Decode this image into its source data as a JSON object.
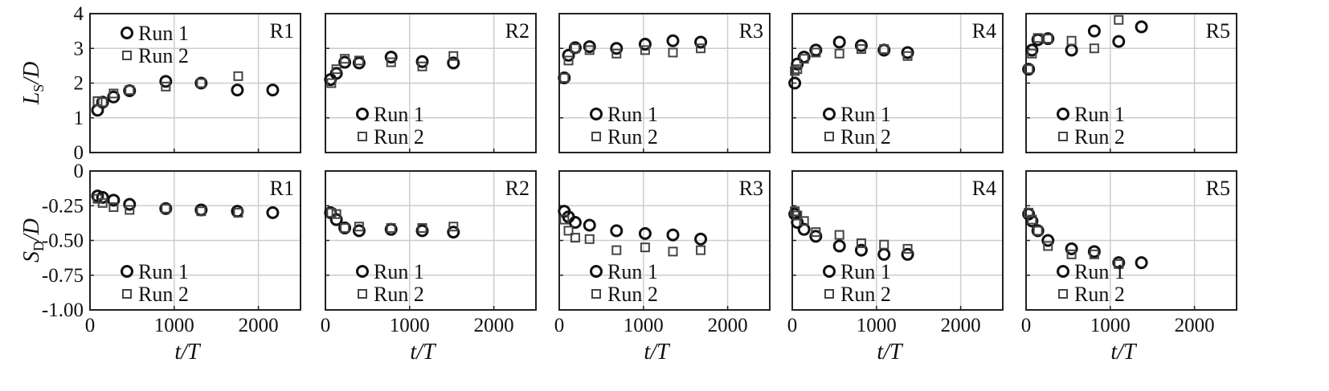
{
  "chart_data": {
    "type": "scatter",
    "layout": "2 rows x 5 columns of panels, shared axes",
    "xlabel": "t/T",
    "xlim": [
      0,
      2500
    ],
    "xticks": [
      0,
      1000,
      2000
    ],
    "grid": true,
    "rows": [
      {
        "ylabel_main": "L",
        "ylabel_sub": "S",
        "ylabel_tail": "/D",
        "ylim": [
          0,
          4
        ],
        "yticks": [
          0,
          1,
          2,
          3,
          4
        ],
        "ytick_labels": [
          "0",
          "1",
          "2",
          "3",
          "4"
        ],
        "legend_position": [
          "top-left",
          "bottom-left",
          "bottom-left",
          "bottom-left",
          "bottom-left"
        ]
      },
      {
        "ylabel_main": "S",
        "ylabel_sub": "D",
        "ylabel_tail": "/D",
        "ylim": [
          -1,
          0
        ],
        "yticks": [
          0,
          -0.25,
          -0.5,
          -0.75,
          -1.0
        ],
        "ytick_labels": [
          "0",
          "-0.25",
          "-0.50",
          "-0.75",
          "-1.00"
        ],
        "legend_position": [
          "bottom-left",
          "bottom-left",
          "bottom-left",
          "bottom-left",
          "bottom-left"
        ]
      }
    ],
    "legend": [
      {
        "name": "Run 1",
        "marker": "circle"
      },
      {
        "name": "Run 2",
        "marker": "square"
      }
    ],
    "panels": [
      {
        "title": "R1",
        "top": [
          {
            "name": "Run 1",
            "x": [
              90,
              150,
              280,
              470,
              900,
              1320,
              1750,
              2170
            ],
            "y": [
              1.22,
              1.45,
              1.6,
              1.78,
              2.05,
              2.0,
              1.8,
              1.8
            ]
          },
          {
            "name": "Run 2",
            "x": [
              90,
              150,
              280,
              470,
              900,
              1320,
              1760
            ],
            "y": [
              1.48,
              1.45,
              1.7,
              1.8,
              1.9,
              2.0,
              2.2
            ]
          }
        ],
        "bottom": [
          {
            "name": "Run 1",
            "x": [
              90,
              150,
              280,
              470,
              900,
              1320,
              1750,
              2170
            ],
            "y": [
              -0.18,
              -0.19,
              -0.21,
              -0.24,
              -0.27,
              -0.28,
              -0.29,
              -0.3
            ]
          },
          {
            "name": "Run 2",
            "x": [
              90,
              150,
              280,
              470,
              900,
              1320,
              1760
            ],
            "y": [
              -0.2,
              -0.23,
              -0.26,
              -0.28,
              -0.27,
              -0.29,
              -0.3
            ]
          }
        ]
      },
      {
        "title": "R2",
        "top": [
          {
            "name": "Run 1",
            "x": [
              60,
              130,
              230,
              400,
              780,
              1150,
              1520
            ],
            "y": [
              2.1,
              2.28,
              2.6,
              2.58,
              2.75,
              2.62,
              2.58
            ]
          },
          {
            "name": "Run 2",
            "x": [
              70,
              130,
              230,
              400,
              780,
              1150,
              1520
            ],
            "y": [
              2.0,
              2.4,
              2.7,
              2.65,
              2.6,
              2.48,
              2.78
            ]
          }
        ],
        "bottom": [
          {
            "name": "Run 1",
            "x": [
              60,
              130,
              230,
              400,
              780,
              1150,
              1520
            ],
            "y": [
              -0.3,
              -0.35,
              -0.41,
              -0.43,
              -0.42,
              -0.43,
              -0.44
            ]
          },
          {
            "name": "Run 2",
            "x": [
              70,
              130,
              230,
              400,
              780,
              1150,
              1520
            ],
            "y": [
              -0.3,
              -0.31,
              -0.41,
              -0.4,
              -0.41,
              -0.41,
              -0.4
            ]
          }
        ]
      },
      {
        "title": "R3",
        "top": [
          {
            "name": "Run 1",
            "x": [
              60,
              110,
              190,
              360,
              680,
              1020,
              1350,
              1680
            ],
            "y": [
              2.15,
              2.8,
              3.02,
              3.05,
              3.0,
              3.12,
              3.22,
              3.18
            ]
          },
          {
            "name": "Run 2",
            "x": [
              60,
              110,
              190,
              360,
              680,
              1020,
              1350,
              1680
            ],
            "y": [
              2.15,
              2.65,
              3.0,
              2.95,
              2.85,
              2.95,
              2.88,
              3.0
            ]
          }
        ],
        "bottom": [
          {
            "name": "Run 1",
            "x": [
              60,
              110,
              190,
              360,
              680,
              1020,
              1350,
              1680
            ],
            "y": [
              -0.29,
              -0.33,
              -0.37,
              -0.39,
              -0.43,
              -0.45,
              -0.46,
              -0.49
            ]
          },
          {
            "name": "Run 2",
            "x": [
              60,
              110,
              190,
              360,
              680,
              1020,
              1350,
              1680
            ],
            "y": [
              -0.35,
              -0.43,
              -0.48,
              -0.49,
              -0.57,
              -0.55,
              -0.58,
              -0.57
            ]
          }
        ]
      },
      {
        "title": "R4",
        "top": [
          {
            "name": "Run 1",
            "x": [
              30,
              60,
              140,
              280,
              560,
              820,
              1090,
              1370
            ],
            "y": [
              2.0,
              2.55,
              2.75,
              2.95,
              3.18,
              3.08,
              2.95,
              2.88
            ]
          },
          {
            "name": "Run 2",
            "x": [
              30,
              60,
              140,
              280,
              560,
              820,
              1090,
              1370
            ],
            "y": [
              2.35,
              2.4,
              2.7,
              2.88,
              2.85,
              2.98,
              2.98,
              2.78
            ]
          }
        ],
        "bottom": [
          {
            "name": "Run 1",
            "x": [
              30,
              60,
              140,
              280,
              560,
              820,
              1090,
              1370
            ],
            "y": [
              -0.31,
              -0.37,
              -0.42,
              -0.47,
              -0.54,
              -0.57,
              -0.6,
              -0.6
            ]
          },
          {
            "name": "Run 2",
            "x": [
              30,
              60,
              140,
              280,
              560,
              820,
              1090,
              1370
            ],
            "y": [
              -0.29,
              -0.32,
              -0.36,
              -0.44,
              -0.46,
              -0.52,
              -0.53,
              -0.56
            ]
          }
        ]
      },
      {
        "title": "R5",
        "top": [
          {
            "name": "Run 1",
            "x": [
              30,
              70,
              140,
              260,
              540,
              810,
              1100,
              1370
            ],
            "y": [
              2.4,
              2.95,
              3.25,
              3.28,
              2.95,
              3.5,
              3.2,
              3.62
            ]
          },
          {
            "name": "Run 2",
            "x": [
              30,
              70,
              140,
              260,
              540,
              810,
              1100
            ],
            "y": [
              2.4,
              2.85,
              3.3,
              3.28,
              3.22,
              3.0,
              3.82
            ]
          }
        ],
        "bottom": [
          {
            "name": "Run 1",
            "x": [
              30,
              70,
              140,
              260,
              540,
              810,
              1100,
              1370
            ],
            "y": [
              -0.31,
              -0.36,
              -0.43,
              -0.5,
              -0.56,
              -0.58,
              -0.66,
              -0.66
            ]
          },
          {
            "name": "Run 2",
            "x": [
              30,
              70,
              140,
              260,
              540,
              810,
              1100
            ],
            "y": [
              -0.3,
              -0.35,
              -0.43,
              -0.54,
              -0.6,
              -0.6,
              -0.67
            ]
          }
        ]
      }
    ]
  }
}
